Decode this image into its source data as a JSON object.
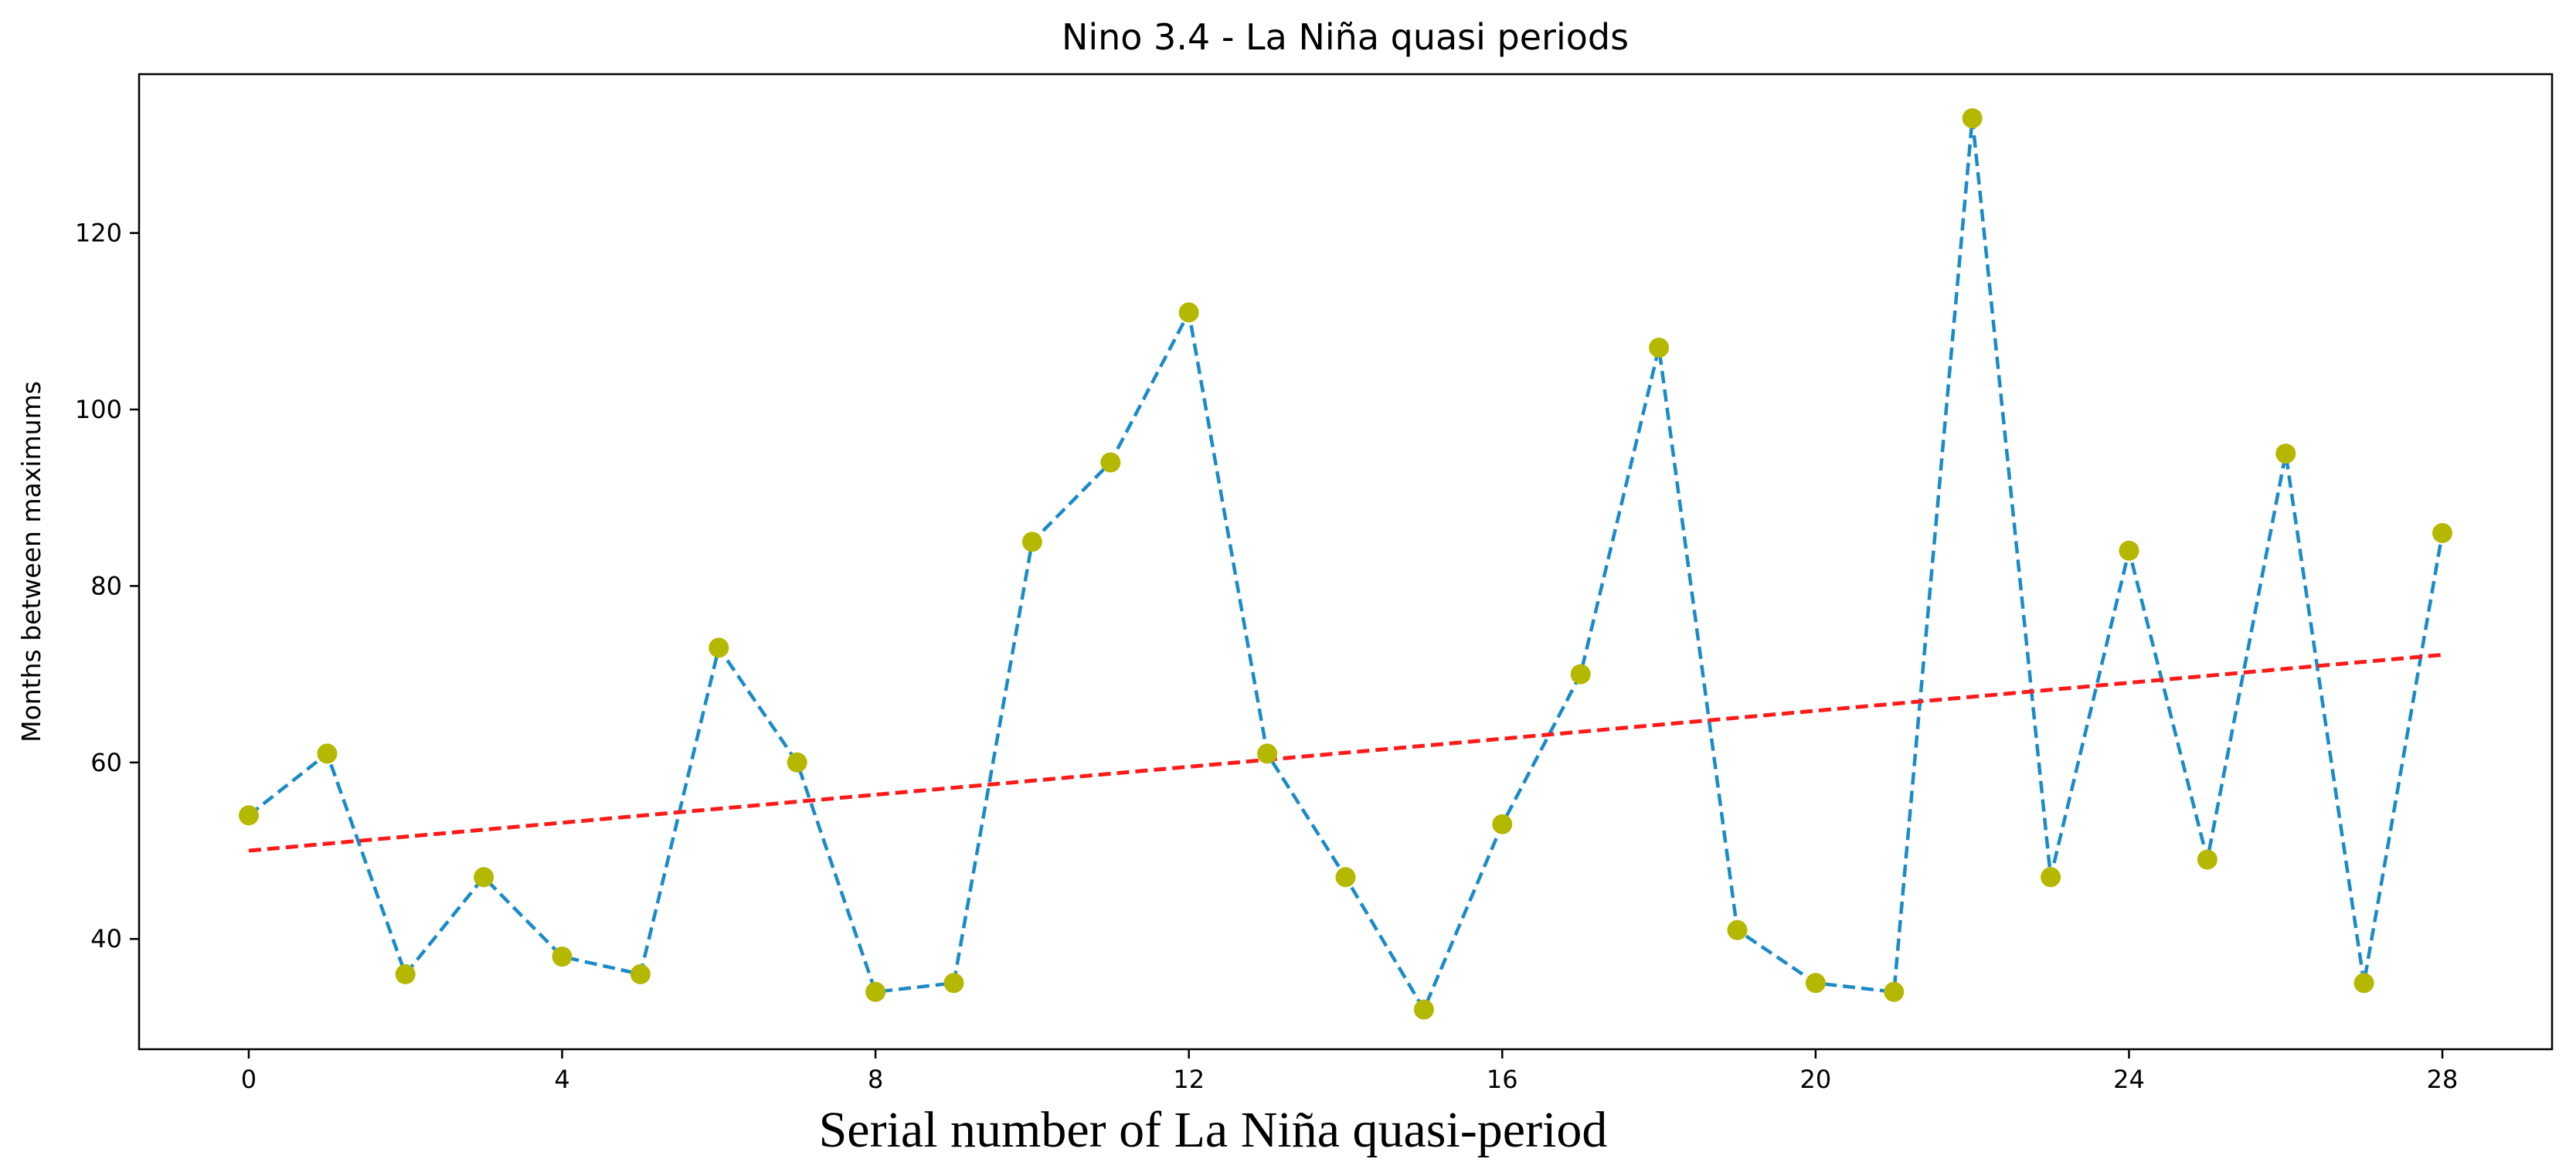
{
  "chart_data": {
    "type": "line",
    "title": "Nino 3.4 - La Niña quasi periods",
    "xlabel": "Serial number  of La Niña quasi-period",
    "ylabel": "Months between maximums",
    "xlim": [
      -1.4,
      29.4
    ],
    "ylim": [
      27.5,
      138
    ],
    "xticks": [
      0,
      4,
      8,
      12,
      16,
      20,
      24,
      28
    ],
    "xtick_labels": [
      "0",
      "4",
      "8",
      "12",
      "16",
      "20",
      "24",
      "28"
    ],
    "yticks": [
      40,
      60,
      80,
      100,
      120
    ],
    "ytick_labels": [
      "40",
      "60",
      "80",
      "100",
      "120"
    ],
    "grid": false,
    "series": [
      {
        "name": "Months between maximums",
        "style": "dashed-line-with-markers",
        "line_color": "#1a8bc8",
        "marker_color": "#b5b800",
        "x": [
          0,
          1,
          2,
          3,
          4,
          5,
          6,
          7,
          8,
          9,
          10,
          11,
          12,
          13,
          14,
          15,
          16,
          17,
          18,
          19,
          20,
          21,
          22,
          23,
          24,
          25,
          26,
          27,
          28
        ],
        "values": [
          54,
          61,
          36,
          47,
          38,
          36,
          73,
          60,
          34,
          35,
          85,
          94,
          111,
          61,
          47,
          32,
          53,
          70,
          107,
          41,
          35,
          34,
          133,
          47,
          84,
          49,
          95,
          35,
          86
        ]
      },
      {
        "name": "Linear trend",
        "style": "dashed-line",
        "line_color": "#ff1a1a",
        "x": [
          0,
          28
        ],
        "values": [
          50,
          72.2
        ]
      }
    ]
  }
}
